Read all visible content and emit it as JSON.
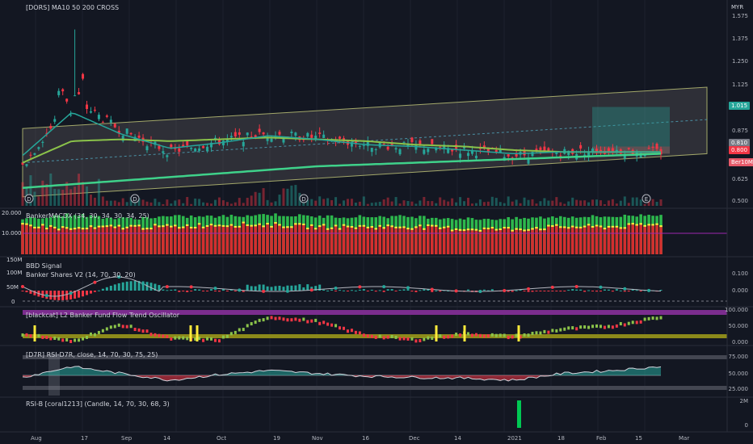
{
  "header": {
    "main_title": "[DORS] MA10 50 200 CROSS",
    "currency": "MYR"
  },
  "panes": {
    "macd": "BankerMACDX (34, 30, 34, 30, 34, 25)",
    "bbd": "BBD Signal",
    "banker_shares": "Banker Shares V2 (14, 70, 30, 20)",
    "fund_flow": "[blackcat] L2 Banker Fund Flow Trend Oscillator",
    "rsi": "[D7R] RSI-D7R, close, 14, 70, 30, 75, 25)",
    "rsib": "RSI-B [coral1213] (Candle, 14, 70, 30, 68, 3)"
  },
  "right_axis": {
    "price": [
      "1.575",
      "1.375",
      "1.250",
      "1.125",
      "1.015",
      "0.875",
      "0.750",
      "0.625",
      "0.500"
    ],
    "macd": [
      "20.000",
      "10.000"
    ],
    "bbd": [
      "0.100",
      "0.000",
      "-0.100"
    ],
    "fund": [
      "100.000",
      "50.000",
      "0.000"
    ],
    "rsi": [
      "75.000",
      "50.000",
      "25.000"
    ],
    "rsib": [
      "2M",
      "0"
    ]
  },
  "left_axis": {
    "bbd": [
      "150M",
      "100M",
      "50M",
      "0"
    ]
  },
  "price_badges": [
    {
      "text": "1.015",
      "color": "#26a69a"
    },
    {
      "text": "0.810",
      "color": "#787b86"
    },
    {
      "text": "0.800",
      "color": "#f23645"
    },
    {
      "text": "0.785",
      "color": "#e65a6a"
    },
    {
      "text": "Ber10M3",
      "color": "#f23645"
    },
    {
      "text": "0.750",
      "color": "#f23645"
    }
  ],
  "event_markers": [
    "D",
    "D",
    "D",
    "E"
  ],
  "x_axis": [
    "Aug",
    "17",
    "Sep",
    "14",
    "Oct",
    "19",
    "Nov",
    "16",
    "Dec",
    "14",
    "2021",
    "18",
    "Feb",
    "15",
    "Mar"
  ],
  "chart_data": {
    "type": "candlestick",
    "title": "[DORS] MA10 50 200 CROSS",
    "ylim": [
      0.5,
      1.6
    ],
    "x": [
      "Aug",
      "17",
      "Sep",
      "14",
      "Oct",
      "19",
      "Nov",
      "16",
      "Dec",
      "14",
      "2021",
      "18",
      "Feb",
      "15"
    ],
    "close": [
      0.72,
      1.1,
      0.92,
      0.8,
      0.86,
      0.9,
      0.88,
      0.84,
      0.83,
      0.81,
      0.78,
      0.8,
      0.81,
      0.8
    ],
    "ma10": [
      0.78,
      1.02,
      0.9,
      0.82,
      0.85,
      0.89,
      0.87,
      0.84,
      0.83,
      0.81,
      0.79,
      0.8,
      0.8,
      0.8
    ],
    "ma50": [
      0.74,
      0.86,
      0.87,
      0.86,
      0.87,
      0.88,
      0.87,
      0.86,
      0.84,
      0.83,
      0.81,
      0.8,
      0.8,
      0.8
    ],
    "ma200": [
      0.6,
      0.62,
      0.64,
      0.66,
      0.68,
      0.7,
      0.72,
      0.73,
      0.74,
      0.75,
      0.76,
      0.77,
      0.78,
      0.79
    ],
    "rsi": [
      45,
      72,
      55,
      38,
      52,
      62,
      55,
      48,
      45,
      43,
      38,
      55,
      62,
      72
    ],
    "fund_flow": [
      30,
      5,
      60,
      15,
      10,
      85,
      70,
      25,
      10,
      30,
      20,
      45,
      55,
      85
    ],
    "macd_green": [
      16,
      18,
      16,
      17,
      17,
      18,
      17,
      17,
      17,
      16,
      16,
      17,
      17,
      18
    ],
    "macd_red": [
      13,
      11,
      12,
      12,
      13,
      13,
      12,
      12,
      12,
      11,
      11,
      12,
      12,
      13
    ],
    "rsib_volume": [
      0,
      0,
      0,
      0,
      0,
      0,
      0,
      0,
      0,
      0,
      2,
      0,
      0,
      0
    ]
  }
}
